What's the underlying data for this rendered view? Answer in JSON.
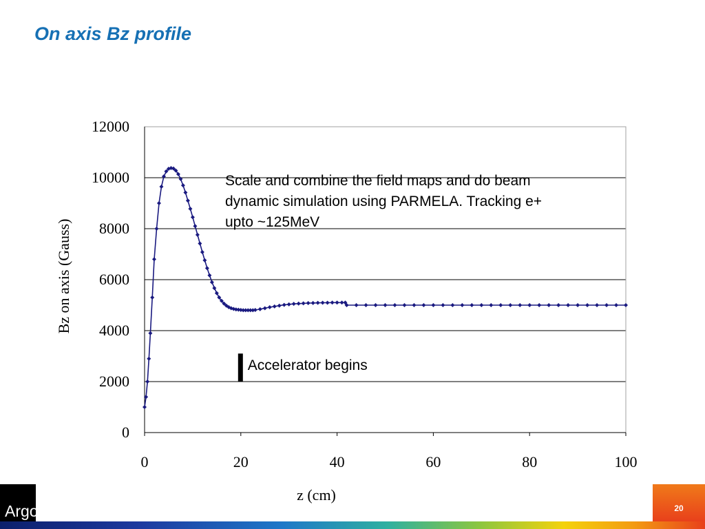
{
  "slide": {
    "title": "On axis Bz profile",
    "page_number": "20",
    "logo_text": "Argonne"
  },
  "colors": {
    "title": "#1670b4",
    "series": "#1a1a80",
    "gridline": "#000000",
    "footer_orange": "#e8401b"
  },
  "chart_data": {
    "type": "scatter",
    "title": "",
    "xlabel": "z (cm)",
    "ylabel": "Bz on axis (Gauss)",
    "xlim": [
      0,
      100
    ],
    "ylim": [
      0,
      12000
    ],
    "x_ticks": [
      "0",
      "20",
      "40",
      "60",
      "80",
      "100"
    ],
    "y_ticks": [
      "0",
      "2000",
      "4000",
      "6000",
      "8000",
      "10000",
      "12000"
    ],
    "grid": "horizontal",
    "series": [
      {
        "name": "",
        "line": true,
        "x": [
          0,
          0.3,
          0.6,
          0.9,
          1.2,
          1.6,
          2.0,
          2.5,
          3.0,
          3.5,
          4.0,
          4.5,
          5.0,
          5.5,
          6.0,
          6.5,
          7.0,
          7.5,
          8.0,
          8.5,
          9.0,
          9.5,
          10.0,
          10.5,
          11.0,
          11.5,
          12.0,
          12.5,
          13.0,
          13.5,
          14.0,
          14.5,
          15.0,
          15.5,
          16.0,
          16.5,
          17.0,
          17.5,
          18.0,
          18.5,
          19.0,
          19.5,
          20.0,
          20.5,
          21.0,
          21.5,
          22.0,
          22.5,
          23.0,
          24.0,
          25.0,
          26.0,
          27.0,
          28.0,
          29.0,
          30.0,
          31.0,
          32.0,
          33.0,
          34.0,
          35.0,
          36.0,
          37.0,
          38.0,
          39.0,
          40.0,
          41.0,
          41.7,
          42.0,
          44.0,
          46.0,
          48.0,
          50.0,
          52.0,
          54.0,
          56.0,
          58.0,
          60.0,
          62.0,
          64.0,
          66.0,
          68.0,
          70.0,
          72.0,
          74.0,
          76.0,
          78.0,
          80.0,
          82.0,
          84.0,
          86.0,
          88.0,
          90.0,
          92.0,
          94.0,
          96.0,
          98.0,
          100.0
        ],
        "y": [
          1000,
          1400,
          2000,
          2900,
          3900,
          5300,
          6800,
          8000,
          9000,
          9650,
          10050,
          10250,
          10350,
          10380,
          10360,
          10280,
          10140,
          9950,
          9700,
          9420,
          9100,
          8780,
          8450,
          8100,
          7760,
          7420,
          7080,
          6760,
          6450,
          6170,
          5900,
          5670,
          5470,
          5300,
          5170,
          5060,
          4980,
          4920,
          4880,
          4850,
          4830,
          4820,
          4810,
          4800,
          4800,
          4800,
          4800,
          4800,
          4810,
          4840,
          4880,
          4920,
          4950,
          4980,
          5010,
          5030,
          5050,
          5060,
          5070,
          5080,
          5085,
          5090,
          5095,
          5095,
          5100,
          5100,
          5100,
          5100,
          5000,
          5000,
          5000,
          5000,
          5000,
          5000,
          5000,
          5000,
          5000,
          5000,
          5000,
          5000,
          5000,
          5000,
          5000,
          5000,
          5000,
          5000,
          5000,
          5000,
          5000,
          5000,
          5000,
          5000,
          5000,
          5000,
          5000,
          5000,
          5000,
          5000
        ]
      }
    ],
    "annotations": [
      {
        "text_lines": [
          "Scale and combine the field maps and do beam",
          "dynamic simulation using PARMELA.  Tracking e+",
          "upto ~125MeV"
        ]
      },
      {
        "text": "Accelerator begins",
        "marker_x": 20,
        "marker_y_range": [
          2000,
          3100
        ]
      }
    ]
  }
}
